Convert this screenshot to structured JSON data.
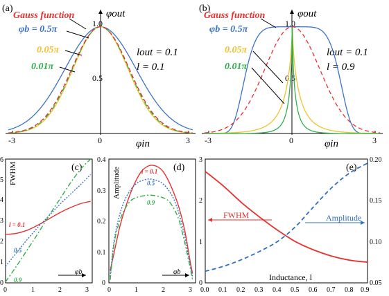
{
  "chart_data": [
    {
      "panel": "(a)",
      "type": "line",
      "ylabel": "φout",
      "xlabel": "φin",
      "xlim": [
        -3.3,
        3.3
      ],
      "ylim": [
        0,
        1.05
      ],
      "xticks": [
        "-3",
        "0",
        "3"
      ],
      "yticks": [
        "0.5",
        "1.0"
      ],
      "annotations": [
        "lout = 0.1",
        "l = 0.1"
      ],
      "legend_labels": [
        "Gauss function",
        "φb = 0.5π",
        "0.05π",
        "0.01π"
      ],
      "series": [
        {
          "name": "Gauss function",
          "color": "#e8302e",
          "dash": "dashed",
          "fwhm": 2.35,
          "shape": 2.0
        },
        {
          "name": "φb = 0.5π",
          "color": "#3a73c8",
          "dash": "solid",
          "fwhm": 2.9,
          "shape": 2.0
        },
        {
          "name": "0.05π",
          "color": "#f2c12e",
          "dash": "solid",
          "fwhm": 2.25,
          "shape": 2.0
        },
        {
          "name": "0.01π",
          "color": "#2fae4a",
          "dash": "dashdot",
          "fwhm": 2.3,
          "shape": 2.0
        }
      ]
    },
    {
      "panel": "(b)",
      "type": "line",
      "ylabel": "φout",
      "xlabel": "φin",
      "xlim": [
        -3.3,
        3.3
      ],
      "ylim": [
        0,
        1.05
      ],
      "xticks": [
        "-3",
        "0",
        "3"
      ],
      "yticks": [
        "0.5",
        "1.0"
      ],
      "annotations": [
        "lout = 0.1",
        "l = 0.9"
      ],
      "legend_labels": [
        "Gauss function",
        "φb = 0.5π",
        "0.05π",
        "0.01π"
      ],
      "series": [
        {
          "name": "Gauss function",
          "color": "#e8302e",
          "dash": "dashed",
          "fwhm": 2.35,
          "shape": 2.0
        },
        {
          "name": "φb = 0.5π",
          "color": "#3a73c8",
          "dash": "solid",
          "fwhm": 3.5,
          "shape": 6.0
        },
        {
          "name": "0.05π",
          "color": "#f2c12e",
          "dash": "solid",
          "fwhm": 0.32,
          "shape": 0.75
        },
        {
          "name": "0.01π",
          "color": "#2fae4a",
          "dash": "solid",
          "fwhm": 0.13,
          "shape": 0.7
        }
      ]
    },
    {
      "panel": "(c)",
      "type": "line",
      "ylabel": "FWHM",
      "xlabel": "φb",
      "xlim": [
        0,
        3.2
      ],
      "ylim": [
        0,
        6
      ],
      "xticks": [
        "0",
        "1",
        "2",
        "3"
      ],
      "yticks": [
        "0",
        "1",
        "2",
        "3",
        "4",
        "5",
        "6"
      ],
      "series": [
        {
          "name": "l = 0.1",
          "color": "#e8302e",
          "dash": "solid",
          "x": [
            0,
            0.4,
            0.8,
            1.2,
            1.6,
            2.0,
            2.4,
            2.8,
            3.14
          ],
          "y": [
            2.35,
            2.4,
            2.55,
            2.8,
            3.1,
            3.4,
            3.65,
            3.85,
            3.95
          ]
        },
        {
          "name": "0.5",
          "color": "#3a73c8",
          "dash": "dotted",
          "x": [
            0,
            0.4,
            0.8,
            1.2,
            1.6,
            2.0,
            2.4,
            2.8,
            3.14
          ],
          "y": [
            0.8,
            1.45,
            2.1,
            2.7,
            3.25,
            3.8,
            4.3,
            4.8,
            5.25
          ]
        },
        {
          "name": "0.9",
          "color": "#2fae4a",
          "dash": "dashdot",
          "x": [
            0,
            0.4,
            0.8,
            1.2,
            1.6,
            2.0,
            2.4,
            2.8,
            3.14
          ],
          "y": [
            0.05,
            0.8,
            1.6,
            2.4,
            3.25,
            4.05,
            4.85,
            5.55,
            6.0
          ]
        }
      ]
    },
    {
      "panel": "(d)",
      "type": "line",
      "ylabel": "Amplitude",
      "xlabel": "φb",
      "xlim": [
        0,
        3.2
      ],
      "ylim": [
        0,
        0.4
      ],
      "xticks": [
        "0",
        "1",
        "2",
        "3"
      ],
      "yticks": [
        "0",
        "0.1",
        "0.2",
        "0.3",
        "0.4"
      ],
      "series": [
        {
          "name": "l = 0.1",
          "color": "#e8302e",
          "dash": "solid",
          "x": [
            0.05,
            0.2,
            0.4,
            0.6,
            0.8,
            1.0,
            1.2,
            1.4,
            1.57,
            1.8,
            2.0,
            2.2,
            2.4,
            2.6,
            2.8,
            3.0,
            3.09
          ],
          "y": [
            0.04,
            0.1,
            0.18,
            0.24,
            0.29,
            0.33,
            0.36,
            0.375,
            0.38,
            0.375,
            0.36,
            0.33,
            0.29,
            0.24,
            0.17,
            0.07,
            0.03
          ]
        },
        {
          "name": "0.5",
          "color": "#3a73c8",
          "dash": "dotted",
          "x": [
            0.05,
            0.2,
            0.4,
            0.6,
            0.8,
            1.0,
            1.2,
            1.4,
            1.57,
            1.8,
            2.0,
            2.2,
            2.4,
            2.6,
            2.8,
            3.0,
            3.09
          ],
          "y": [
            0.02,
            0.14,
            0.22,
            0.27,
            0.3,
            0.32,
            0.33,
            0.335,
            0.335,
            0.33,
            0.32,
            0.3,
            0.27,
            0.22,
            0.15,
            0.06,
            0.02
          ]
        },
        {
          "name": "0.9",
          "color": "#2fae4a",
          "dash": "dashdot",
          "x": [
            0.05,
            0.2,
            0.4,
            0.6,
            0.8,
            1.0,
            1.2,
            1.4,
            1.57,
            1.8,
            2.0,
            2.2,
            2.4,
            2.6,
            2.8,
            3.0,
            3.09
          ],
          "y": [
            0.01,
            0.13,
            0.2,
            0.24,
            0.265,
            0.275,
            0.28,
            0.283,
            0.283,
            0.28,
            0.275,
            0.265,
            0.24,
            0.2,
            0.13,
            0.05,
            0.01
          ]
        }
      ]
    },
    {
      "panel": "(e)",
      "type": "line",
      "xlabel": "Inductance, l",
      "xlim": [
        0,
        0.9
      ],
      "ylim": [
        0,
        3
      ],
      "y2lim": [
        0.05,
        0.2
      ],
      "xticks": [
        "0.0",
        "0.1",
        "0.2",
        "0.3",
        "0.4",
        "0.5",
        "0.6",
        "0.7",
        "0.8",
        "0.9"
      ],
      "yticks": [
        "0",
        "1",
        "2",
        "3"
      ],
      "y2ticks": [
        "0.05",
        "0.10",
        "0.15",
        "0.20"
      ],
      "series": [
        {
          "name": "FWHM",
          "color": "#e8302e",
          "dash": "solid",
          "axis": "left",
          "x": [
            0,
            0.1,
            0.2,
            0.3,
            0.4,
            0.5,
            0.6,
            0.7,
            0.8,
            0.9
          ],
          "y": [
            2.7,
            2.35,
            1.95,
            1.6,
            1.28,
            1.0,
            0.8,
            0.65,
            0.55,
            0.5
          ]
        },
        {
          "name": "Amplitude",
          "color": "#2f6fc0",
          "dash": "dashed",
          "axis": "right",
          "x": [
            0,
            0.1,
            0.2,
            0.3,
            0.4,
            0.5,
            0.6,
            0.7,
            0.8,
            0.9
          ],
          "y": [
            0.064,
            0.07,
            0.078,
            0.088,
            0.1,
            0.118,
            0.142,
            0.165,
            0.183,
            0.195
          ]
        }
      ]
    }
  ]
}
